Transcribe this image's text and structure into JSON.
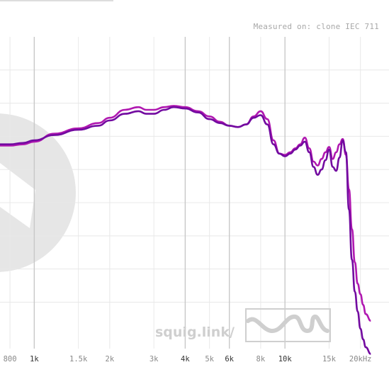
{
  "header": {
    "measured_label": "Measured on: clone IEC 711"
  },
  "watermark": {
    "text": "squig.link/"
  },
  "colors": {
    "series_a": "#b018b0",
    "series_b": "#720aa0",
    "grid_major": "#c8c8c8",
    "grid_minor": "#e8e8e8",
    "watermark": "#e3e3e3"
  },
  "chart_data": {
    "type": "line",
    "title": "",
    "xlabel": "",
    "ylabel": "",
    "x_scale": "log",
    "xlim": [
      730,
      26000
    ],
    "ylim": [
      43,
      90
    ],
    "grid": true,
    "x_ticks": [
      {
        "value": 800,
        "label": "800",
        "major": false
      },
      {
        "value": 1000,
        "label": "1k",
        "major": true
      },
      {
        "value": 1500,
        "label": "1.5k",
        "major": false
      },
      {
        "value": 2000,
        "label": "2k",
        "major": false
      },
      {
        "value": 3000,
        "label": "3k",
        "major": false
      },
      {
        "value": 4000,
        "label": "4k",
        "major": true
      },
      {
        "value": 5000,
        "label": "5k",
        "major": false
      },
      {
        "value": 6000,
        "label": "6k",
        "major": true
      },
      {
        "value": 8000,
        "label": "8k",
        "major": false
      },
      {
        "value": 10000,
        "label": "10k",
        "major": true
      },
      {
        "value": 15000,
        "label": "15k",
        "major": false
      },
      {
        "value": 20000,
        "label": "20kHz",
        "major": false
      }
    ],
    "y_grid": [
      50,
      55,
      60,
      65,
      70,
      75,
      80,
      85
    ],
    "series": [
      {
        "color": "#b018b0",
        "x": [
          730,
          800,
          900,
          1000,
          1200,
          1500,
          1800,
          2000,
          2300,
          2600,
          2800,
          3000,
          3300,
          3600,
          4000,
          4500,
          5000,
          5500,
          6000,
          6500,
          7000,
          7500,
          8000,
          8500,
          9000,
          9500,
          10000,
          10500,
          11000,
          11500,
          12000,
          12500,
          13000,
          13500,
          14000,
          14500,
          15000,
          15500,
          16000,
          16500,
          17000,
          17500,
          18000,
          18500,
          19000,
          19500,
          20000,
          20500,
          21000,
          22000
        ],
        "y": [
          73.6,
          73.6,
          73.8,
          74.2,
          75.4,
          76.2,
          77.0,
          77.8,
          79.0,
          79.4,
          79.0,
          79.0,
          79.4,
          79.6,
          79.4,
          78.8,
          78.0,
          77.2,
          76.6,
          76.4,
          76.8,
          78.0,
          78.8,
          77.6,
          74.4,
          72.4,
          72.2,
          72.6,
          73.2,
          73.8,
          74.8,
          73.2,
          71.2,
          70.6,
          71.6,
          72.6,
          73.4,
          71.6,
          72.6,
          73.8,
          74.6,
          72.2,
          67.0,
          61.0,
          56.0,
          52.8,
          51.2,
          49.6,
          48.2,
          47.2
        ]
      },
      {
        "color": "#720aa0",
        "x": [
          730,
          800,
          900,
          1000,
          1200,
          1500,
          1800,
          2000,
          2300,
          2600,
          2800,
          3000,
          3300,
          3600,
          4000,
          4500,
          5000,
          5500,
          6000,
          6500,
          7000,
          7500,
          8000,
          8500,
          9000,
          9500,
          10000,
          10500,
          11000,
          11500,
          12000,
          12500,
          13000,
          13500,
          14000,
          14500,
          15000,
          15500,
          16000,
          16500,
          17000,
          17500,
          18000,
          18500,
          19000,
          19500,
          20000,
          20500,
          21000,
          22000
        ],
        "y": [
          73.8,
          73.8,
          74.0,
          74.4,
          75.2,
          76.0,
          76.6,
          77.4,
          78.4,
          78.8,
          78.4,
          78.4,
          79.0,
          79.4,
          79.2,
          78.6,
          77.6,
          77.0,
          76.6,
          76.4,
          76.8,
          77.8,
          78.2,
          76.8,
          73.8,
          72.4,
          72.0,
          72.4,
          73.0,
          73.6,
          74.2,
          72.6,
          70.4,
          69.2,
          70.0,
          71.4,
          73.0,
          70.4,
          69.8,
          71.8,
          74.4,
          72.6,
          64.0,
          56.4,
          51.6,
          48.6,
          46.0,
          44.4,
          43.2,
          42.2
        ]
      }
    ]
  }
}
